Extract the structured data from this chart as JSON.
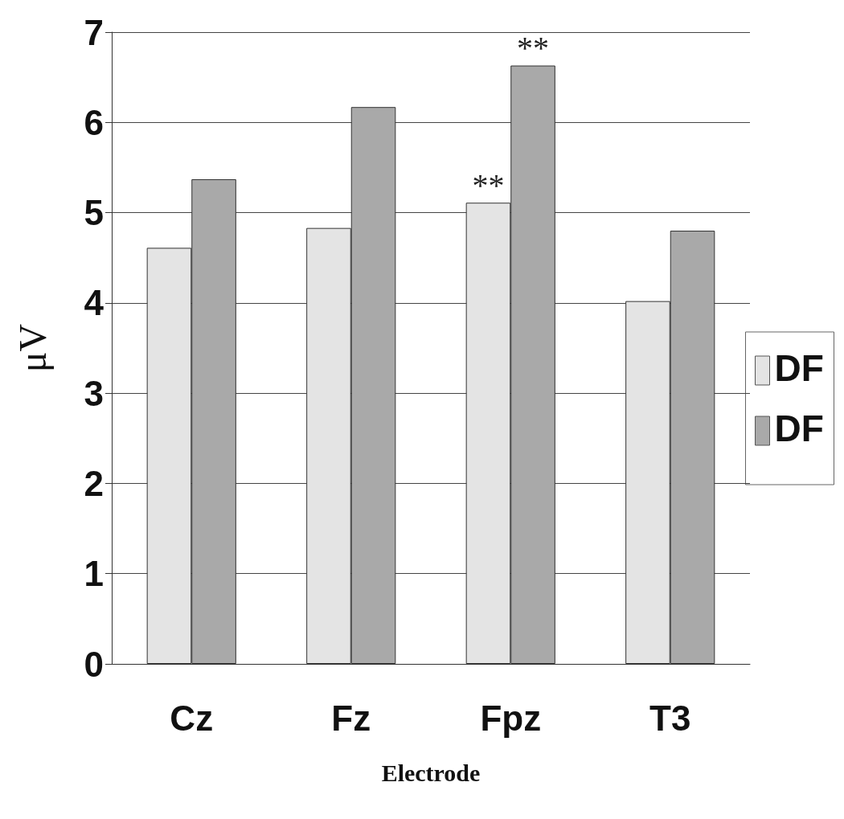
{
  "chart_data": {
    "type": "bar",
    "xlabel": "Electrode",
    "ylabel": "μV",
    "categories": [
      "Cz",
      "Fz",
      "Fpz",
      "T3"
    ],
    "series": [
      {
        "name": "DF",
        "color": "#e4e4e4",
        "values": [
          4.61,
          4.83,
          5.11,
          4.02
        ]
      },
      {
        "name": "DF",
        "color": "#a9a9a9",
        "values": [
          5.37,
          6.17,
          6.63,
          4.8
        ]
      }
    ],
    "ylim": [
      0,
      7
    ],
    "yticks": [
      0,
      1,
      2,
      3,
      4,
      5,
      6,
      7
    ],
    "grid": "y",
    "legend": "right",
    "annotations": [
      {
        "text": "**",
        "x": "Fpz",
        "y": 5.11
      },
      {
        "text": "**",
        "x": "Fpz",
        "y": 6.63
      }
    ]
  }
}
